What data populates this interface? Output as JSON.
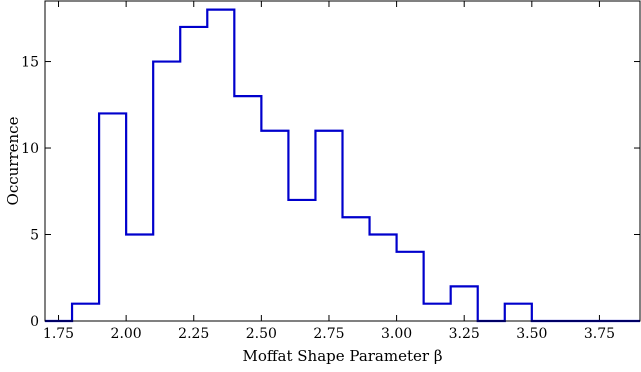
{
  "chart_data": {
    "type": "bar",
    "style": "step-histogram",
    "xlabel": "Moffat Shape Parameter β",
    "ylabel": "Occurrence",
    "xlim": [
      1.7,
      3.9
    ],
    "ylim": [
      0,
      18.5
    ],
    "x_ticks": [
      "1.75",
      "2.00",
      "2.25",
      "2.50",
      "2.75",
      "3.00",
      "3.25",
      "3.50",
      "3.75"
    ],
    "x_tick_values": [
      1.75,
      2.0,
      2.25,
      2.5,
      2.75,
      3.0,
      3.25,
      3.5,
      3.75
    ],
    "y_ticks": [
      "0",
      "5",
      "10",
      "15"
    ],
    "y_tick_values": [
      0,
      5,
      10,
      15
    ],
    "bin_edges": [
      1.8,
      1.9,
      2.0,
      2.1,
      2.2,
      2.3,
      2.4,
      2.5,
      2.6,
      2.7,
      2.8,
      2.9,
      3.0,
      3.1,
      3.2,
      3.3,
      3.4,
      3.5
    ],
    "values": [
      1,
      12,
      5,
      15,
      17,
      18,
      13,
      11,
      7,
      11,
      6,
      5,
      4,
      1,
      2,
      0,
      1
    ],
    "line_color": "#0000cc",
    "grid": false,
    "legend": "none"
  }
}
